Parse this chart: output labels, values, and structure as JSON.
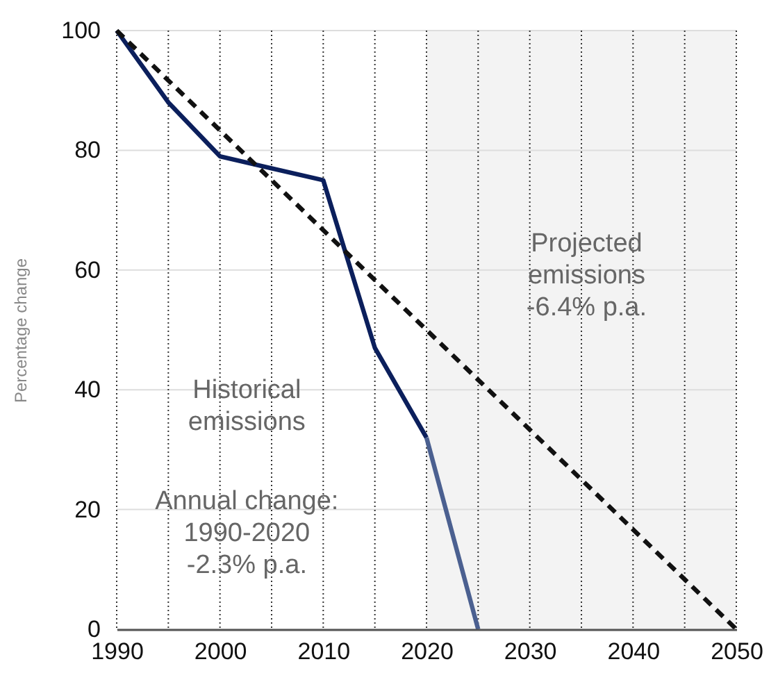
{
  "chart_data": {
    "type": "line",
    "ylabel": "Percentage change",
    "xlim": [
      1990,
      2050
    ],
    "ylim": [
      0,
      100
    ],
    "xticks": [
      1990,
      {
        "value": 1995,
        "label": null
      },
      2000,
      {
        "value": 2005,
        "label": null
      },
      2010,
      {
        "value": 2015,
        "label": null
      },
      2020,
      {
        "value": 2025,
        "label": null
      },
      2030,
      {
        "value": 2035,
        "label": null
      },
      2040,
      {
        "value": 2045,
        "label": null
      },
      2050
    ],
    "yticks": [
      0,
      20,
      40,
      60,
      80,
      100
    ],
    "grid": true,
    "marker": "none",
    "bands": [
      {
        "axis": "x",
        "from": 2020,
        "to": 2050,
        "color": "#f3f3f3"
      }
    ],
    "series": [
      {
        "color": "#0b1f5c",
        "x": [
          1990,
          1995,
          2000,
          2005,
          2010,
          2015,
          2020
        ],
        "values": [
          100,
          88,
          79,
          77,
          75,
          47,
          32
        ],
        "line_style": "solid"
      },
      {
        "color": "#4b6090",
        "x": [
          2020,
          2025
        ],
        "values": [
          32,
          0
        ],
        "line_style": "solid"
      },
      {
        "color": "#111111",
        "x": [
          1990,
          2050
        ],
        "values": [
          100,
          0
        ],
        "line_style": "dashed"
      }
    ],
    "annotations": [
      "Historical\nemissions",
      "Annual change:\n1990-2020\n-2.3% p.a.",
      "Projected\nemissions\n-6.4% p.a."
    ]
  }
}
